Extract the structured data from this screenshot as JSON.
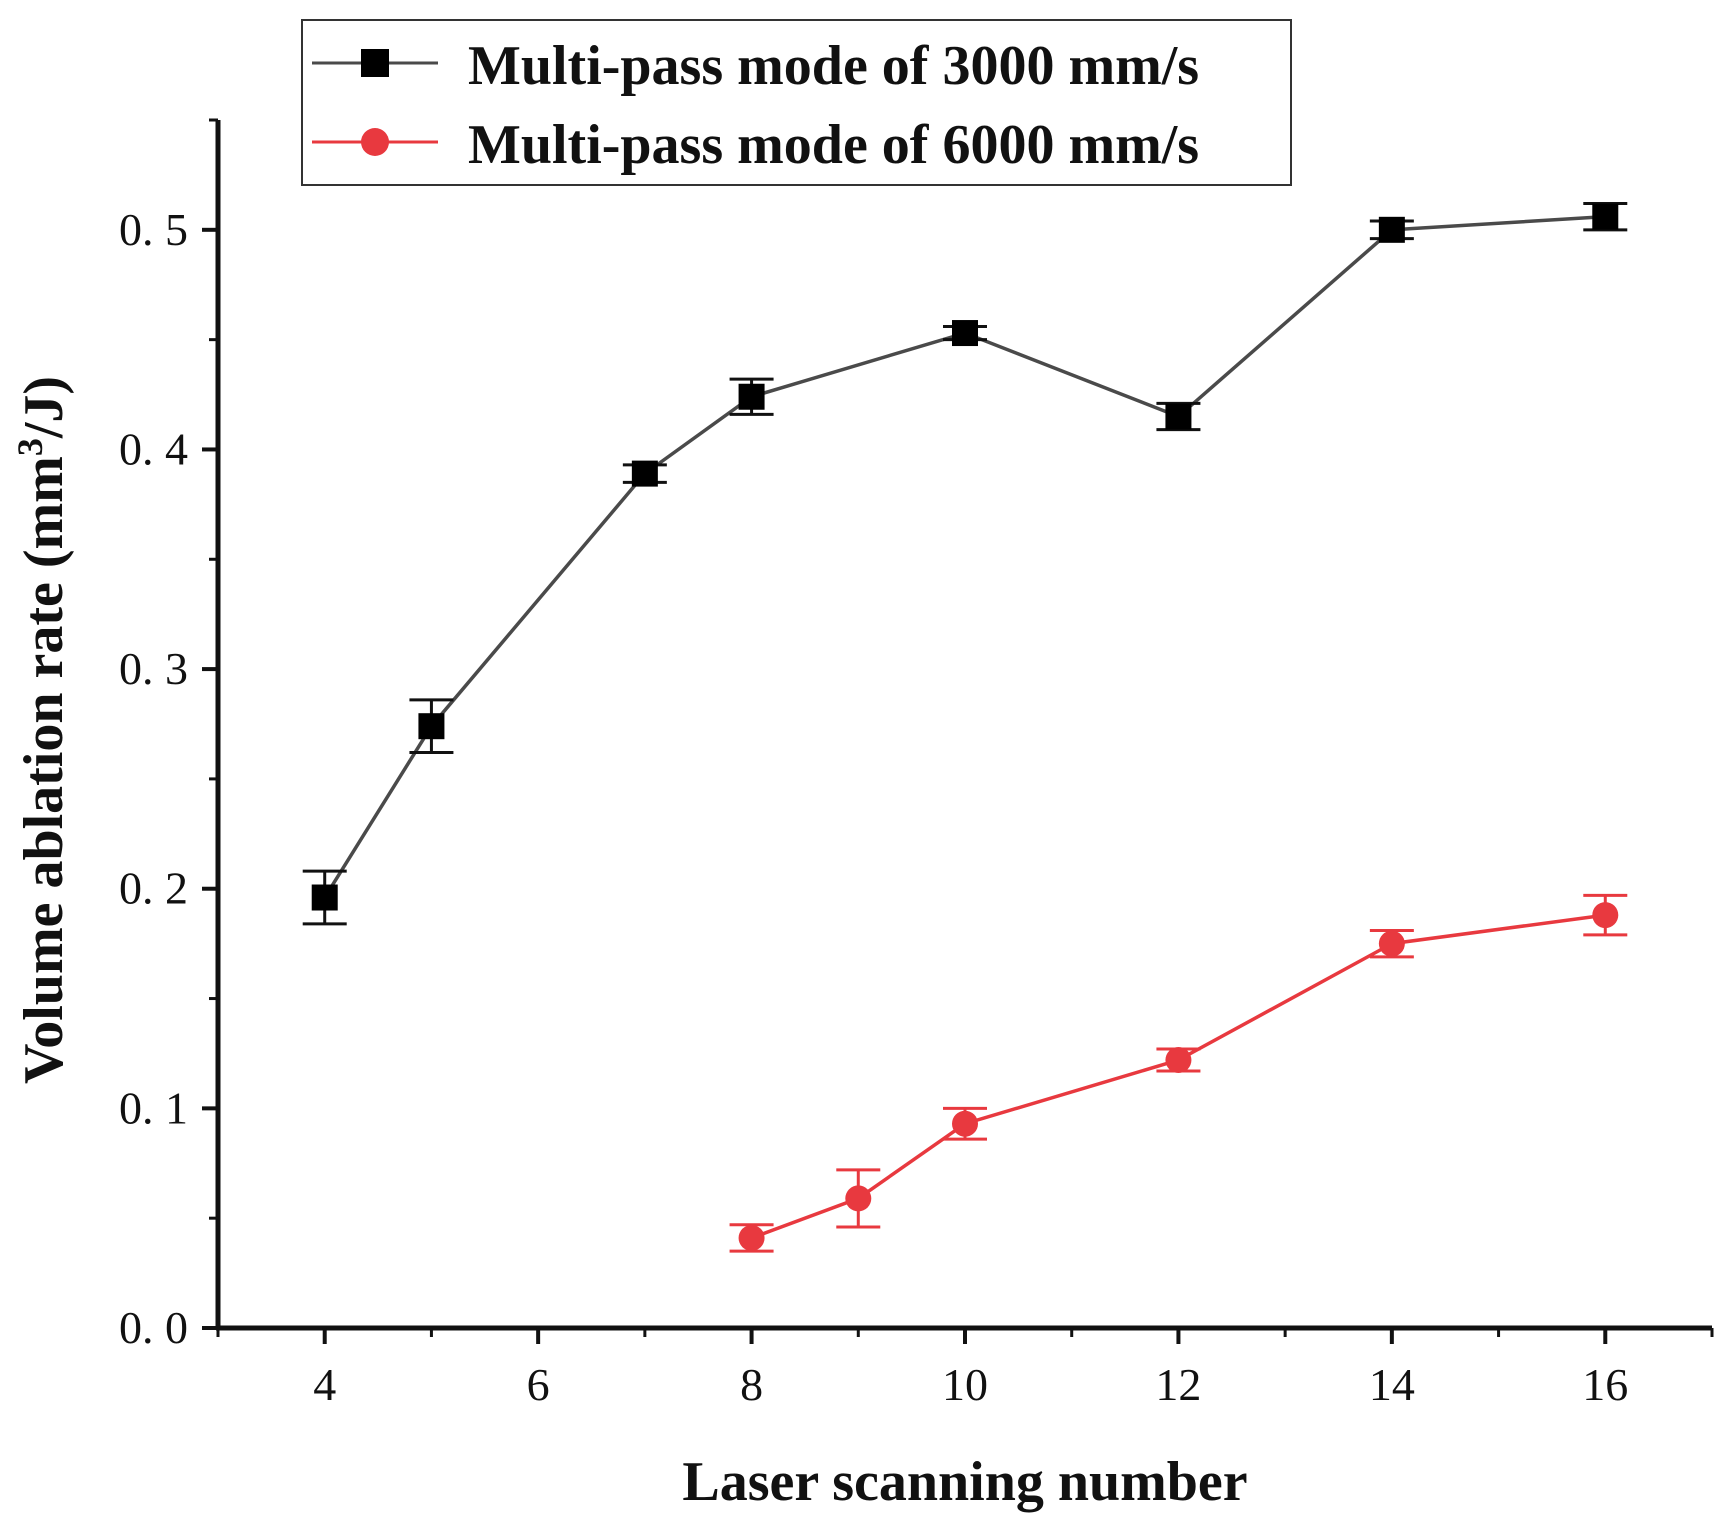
{
  "chart_data": {
    "type": "line",
    "title": "",
    "xlabel": "Laser scanning number",
    "ylabel_main": "Volume ablation rate (mm",
    "ylabel_sup": "3",
    "ylabel_tail": "/J)",
    "xlim": [
      3,
      17
    ],
    "ylim": [
      0,
      0.55
    ],
    "xticks": [
      4,
      6,
      8,
      10,
      12,
      14,
      16
    ],
    "xtick_labels": [
      "4",
      "6",
      "8",
      "10",
      "12",
      "14",
      "16"
    ],
    "yticks": [
      0,
      0.1,
      0.2,
      0.3,
      0.4,
      0.5
    ],
    "ytick_labels": [
      "0. 0",
      "0. 1",
      "0. 2",
      "0. 3",
      "0. 4",
      "0. 5"
    ],
    "legend_position": "top-left",
    "series": [
      {
        "name": "Multi-pass mode of 3000 mm/s",
        "marker": "square",
        "color": "#000000",
        "line_color": "#4a4a4a",
        "x": [
          4,
          5,
          7,
          8,
          10,
          12,
          14,
          16
        ],
        "y": [
          0.196,
          0.274,
          0.389,
          0.424,
          0.453,
          0.415,
          0.5,
          0.506
        ],
        "err": [
          0.012,
          0.012,
          0.004,
          0.008,
          0.003,
          0.006,
          0.004,
          0.006
        ]
      },
      {
        "name": "Multi-pass mode of 6000 mm/s",
        "marker": "circle",
        "color": "#e8393f",
        "line_color": "#e8393f",
        "x": [
          8,
          9,
          10,
          12,
          14,
          16
        ],
        "y": [
          0.041,
          0.059,
          0.093,
          0.122,
          0.175,
          0.188
        ],
        "err": [
          0.006,
          0.013,
          0.007,
          0.005,
          0.006,
          0.009
        ]
      }
    ]
  }
}
